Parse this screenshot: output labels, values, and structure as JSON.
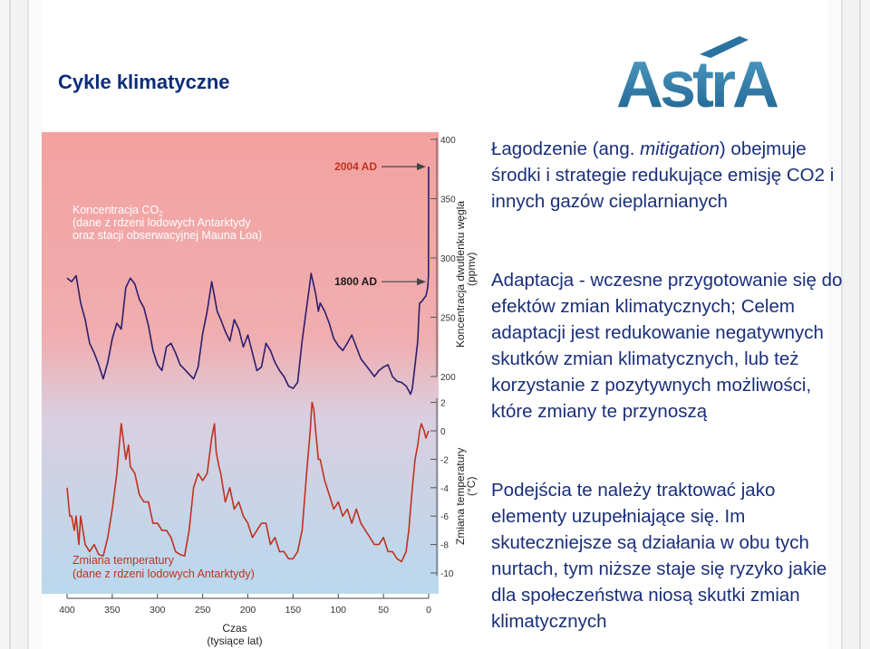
{
  "slide": {
    "title": "Cykle klimatyczne",
    "logo_text": "AstrA"
  },
  "chart_data": {
    "type": "line",
    "title": "",
    "xlabel": "Czas (tysiące lat)",
    "x_ticks": [
      "400",
      "350",
      "300",
      "250",
      "200",
      "150",
      "100",
      "50",
      "0"
    ],
    "xlim": [
      400,
      0
    ],
    "co2_axis": {
      "label": "Koncentracja dwutlenku węgla (ppmv)",
      "ticks": [
        "400",
        "350",
        "300",
        "250",
        "200"
      ],
      "ylim": [
        200,
        400
      ]
    },
    "temp_axis": {
      "label": "Zmiana temperatury (°C)",
      "ticks": [
        "2",
        "0",
        "-2",
        "-4",
        "-6",
        "-8",
        "-10"
      ],
      "ylim": [
        -10,
        2
      ]
    },
    "annotations": [
      {
        "text": "2004 AD",
        "value_ppmv": 377
      },
      {
        "text": "1800 AD",
        "value_ppmv": 280
      }
    ],
    "co2_label": {
      "line1": "Koncentracja CO",
      "sub": "2",
      "line2": "(dane z rdzeni lodowych Antarktydy",
      "line3": "oraz stacji obserwacyjnej Mauna Loa)"
    },
    "temp_label": {
      "line1": "Zmiana temperatury",
      "line2": "(dane z rdzeni lodowych Antarktydy)"
    },
    "series": [
      {
        "name": "CO2",
        "color": "#2b1e6e",
        "x": [
          400,
          395,
          390,
          385,
          380,
          375,
          370,
          365,
          360,
          355,
          350,
          345,
          340,
          335,
          330,
          325,
          320,
          315,
          310,
          305,
          300,
          295,
          290,
          285,
          280,
          275,
          270,
          265,
          260,
          255,
          250,
          245,
          240,
          237,
          234,
          230,
          225,
          220,
          215,
          210,
          205,
          200,
          195,
          190,
          185,
          180,
          175,
          170,
          165,
          160,
          155,
          150,
          145,
          140,
          135,
          132,
          130,
          128,
          125,
          122,
          120,
          115,
          110,
          105,
          100,
          95,
          90,
          85,
          80,
          75,
          70,
          65,
          60,
          55,
          50,
          45,
          40,
          35,
          30,
          25,
          22,
          20,
          18,
          15,
          12,
          11,
          10,
          8,
          5,
          3,
          1,
          0.2,
          0
        ],
        "y": [
          283,
          280,
          285,
          262,
          248,
          228,
          220,
          210,
          198,
          212,
          232,
          245,
          240,
          275,
          283,
          278,
          265,
          258,
          243,
          222,
          210,
          205,
          225,
          228,
          220,
          210,
          206,
          202,
          198,
          208,
          236,
          255,
          280,
          268,
          255,
          248,
          238,
          230,
          248,
          240,
          225,
          235,
          220,
          205,
          208,
          228,
          222,
          212,
          205,
          200,
          192,
          190,
          195,
          230,
          258,
          275,
          287,
          280,
          270,
          255,
          262,
          255,
          245,
          232,
          226,
          222,
          228,
          235,
          225,
          215,
          210,
          205,
          200,
          205,
          208,
          210,
          200,
          196,
          195,
          192,
          188,
          185,
          190,
          210,
          230,
          248,
          262,
          263,
          266,
          268,
          275,
          285,
          377
        ]
      },
      {
        "name": "Temperature",
        "color": "#c0321e",
        "x": [
          400,
          397,
          395,
          392,
          390,
          387,
          385,
          380,
          375,
          370,
          365,
          360,
          355,
          350,
          345,
          343,
          340,
          337,
          335,
          332,
          330,
          325,
          320,
          315,
          310,
          305,
          300,
          295,
          290,
          285,
          280,
          275,
          270,
          265,
          260,
          255,
          250,
          245,
          243,
          240,
          237,
          235,
          232,
          230,
          225,
          220,
          215,
          210,
          205,
          200,
          195,
          190,
          185,
          180,
          175,
          170,
          165,
          160,
          155,
          150,
          145,
          140,
          135,
          131,
          129,
          127,
          125,
          122,
          120,
          115,
          110,
          105,
          100,
          95,
          90,
          85,
          80,
          75,
          70,
          65,
          60,
          55,
          50,
          45,
          40,
          35,
          30,
          25,
          22,
          20,
          18,
          15,
          12,
          10,
          8,
          5,
          3,
          0
        ],
        "y": [
          -4,
          -6,
          -6,
          -7,
          -6,
          -8,
          -6,
          -8,
          -8.5,
          -8,
          -8.7,
          -8.8,
          -7.5,
          -5.5,
          -3,
          -1.5,
          0.5,
          -1,
          -2,
          -1,
          -2.5,
          -3,
          -4.5,
          -5,
          -5,
          -6.5,
          -6.5,
          -7,
          -7,
          -7.5,
          -8.5,
          -8.7,
          -8.8,
          -7,
          -4,
          -3,
          -3.5,
          -3,
          -2,
          -0.5,
          0.5,
          -1.5,
          -2.5,
          -3,
          -5,
          -4,
          -5.5,
          -5,
          -6,
          -6.5,
          -7.5,
          -7,
          -6.5,
          -6.5,
          -8,
          -7.5,
          -8.5,
          -8.5,
          -9,
          -9,
          -8.5,
          -7,
          -3,
          0,
          2,
          1.5,
          0,
          -2,
          -2,
          -3.5,
          -4.5,
          -5.5,
          -5,
          -6,
          -5.5,
          -6.5,
          -5.5,
          -6.5,
          -7,
          -7.5,
          -8,
          -8,
          -7.5,
          -8.5,
          -8.5,
          -9,
          -9.2,
          -8.5,
          -7,
          -5.5,
          -4,
          -2,
          -1,
          0,
          0.5,
          0,
          -0.5,
          0
        ]
      }
    ]
  },
  "content": {
    "p1_lead": "Łagodzenie (ang. ",
    "p1_italic": "mitigation",
    "p1_rest": ") obejmuje środki i strategie redukujące emisję CO2 i innych gazów cieplarnianych",
    "p2": "Adaptacja - wczesne przygotowanie się do efektów zmian klimatycznych; Celem adaptacji jest redukowanie negatywnych skutków zmian klimatycznych, lub też korzystanie z pozytywnych możliwości, które zmiany te przynoszą",
    "p3": "Podejścia te należy traktować jako elementy uzupełniające się. Im skuteczniejsze są działania w obu tych nurtach, tym niższe staje się ryzyko jakie dla społeczeństwa niosą skutki zmian klimatycznych"
  }
}
